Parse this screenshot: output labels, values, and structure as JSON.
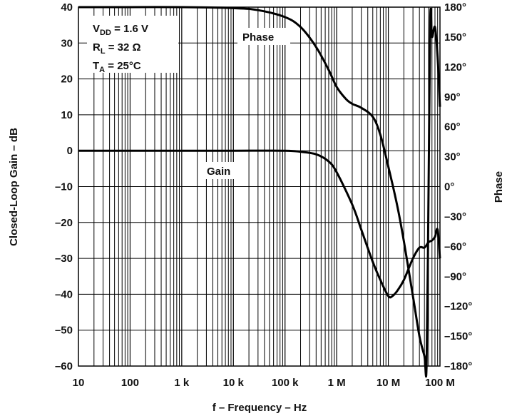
{
  "chart_data": {
    "type": "line",
    "xlabel": "f – Frequency – Hz",
    "ylabel": "Closed-Loop Gain – dB",
    "y2label": "Phase",
    "x_scale": "log",
    "xlim": [
      10,
      100000000
    ],
    "ylim": [
      -60,
      40
    ],
    "y2lim": [
      -180,
      180
    ],
    "grid": true,
    "x_ticks": [
      "10",
      "100",
      "1 k",
      "10 k",
      "100 k",
      "1 M",
      "10 M",
      "100 M"
    ],
    "y_ticks": [
      "40",
      "30",
      "20",
      "10",
      "0",
      "–10",
      "–20",
      "–30",
      "–40",
      "–50",
      "–60"
    ],
    "y2_ticks": [
      "180°",
      "150°",
      "120°",
      "90°",
      "60°",
      "30°",
      "0°",
      "–30°",
      "–60°",
      "–90°",
      "–120°",
      "–150°",
      "–180°"
    ],
    "conditions": {
      "vdd": {
        "main": "V",
        "sub": "DD",
        "rest": " = 1.6 V"
      },
      "rl": {
        "main": "R",
        "sub": "L",
        "rest": " = 32 Ω"
      },
      "ta": {
        "main": "T",
        "sub": "A",
        "rest": " = 25°C"
      }
    },
    "series": [
      {
        "name": "Gain",
        "axis": "left",
        "x": [
          10,
          100,
          1000,
          10000,
          100000,
          200000,
          400000,
          700000,
          1000000,
          2000000,
          3000000,
          5000000,
          7000000,
          10000000,
          12000000,
          15000000,
          20000000,
          30000000,
          40000000,
          50000000,
          60000000,
          70000000,
          80000000,
          90000000,
          100000000
        ],
        "values": [
          0,
          0,
          0,
          0,
          0,
          -0.3,
          -1,
          -3,
          -6,
          -15,
          -22,
          -31,
          -36,
          -40.5,
          -40.5,
          -39,
          -36,
          -30,
          -27,
          -27,
          -25.5,
          -25,
          -24,
          -22,
          -30
        ]
      },
      {
        "name": "Phase",
        "axis": "right",
        "x": [
          10,
          100,
          1000,
          10000,
          30000,
          100000,
          200000,
          400000,
          700000,
          1000000,
          1500000,
          2000000,
          3000000,
          5000000,
          7000000,
          10000000,
          15000000,
          20000000,
          30000000,
          40000000,
          50000000,
          55000000,
          60000000,
          65000000,
          70000000,
          80000000,
          90000000,
          100000000
        ],
        "values": [
          180,
          180,
          180,
          179,
          177,
          170,
          160,
          140,
          117,
          100,
          88,
          83,
          79,
          70,
          52,
          20,
          -20,
          -55,
          -110,
          -150,
          -170,
          -180,
          -10,
          170,
          150,
          160,
          130,
          80
        ]
      }
    ],
    "annotations": [
      "Phase",
      "Gain"
    ]
  }
}
